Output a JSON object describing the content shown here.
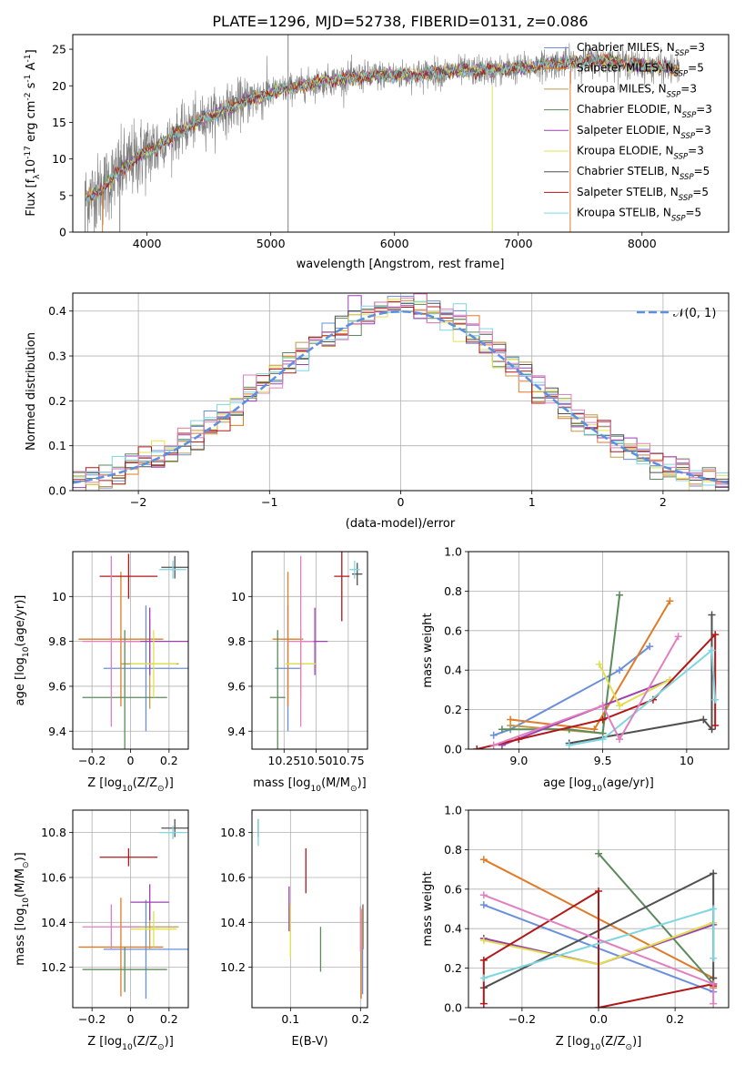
{
  "figure_title": "PLATE=1296, MJD=52738, FIBERID=0131, z=0.086",
  "colors": {
    "chabrier_miles": "#6a8fdc",
    "salpeter_miles": "#e07b27",
    "kroupa_miles": "#c09a4a",
    "chabrier_elodie": "#5b8a5b",
    "salpeter_elodie": "#9b40b0",
    "kroupa_elodie": "#e0e050",
    "chabrier_stelib": "#505050",
    "salpeter_stelib": "#b01818",
    "kroupa_stelib": "#7dd6e0",
    "pink": "#e080c0",
    "normal": "#5b8fe0",
    "spectrum": "#808080"
  },
  "chart_data": [
    {
      "type": "line",
      "id": "spectrum",
      "title": "PLATE=1296, MJD=52738, FIBERID=0131, z=0.086",
      "xlabel": "wavelength [Angstrom, rest frame]",
      "ylabel_parts": [
        "Flux [f",
        "λ",
        "10",
        "-17",
        " erg cm",
        "-2",
        " s",
        "-1",
        " A",
        "-1",
        "]"
      ],
      "xlim": [
        3400,
        8700
      ],
      "ylim": [
        0,
        27
      ],
      "xticks": [
        4000,
        5000,
        6000,
        7000,
        8000
      ],
      "yticks": [
        0,
        5,
        10,
        15,
        20,
        25
      ],
      "legend_placement": "upper-right",
      "legend": [
        {
          "label": "Chabrier MILES, N",
          "sub": "SSP",
          "tail": "=3",
          "color": "#6a8fdc"
        },
        {
          "label": "Salpeter MILES, N",
          "sub": "SSP",
          "tail": "=5",
          "color": "#e07b27"
        },
        {
          "label": "Kroupa MILES, N",
          "sub": "SSP",
          "tail": "=3",
          "color": "#c09a4a"
        },
        {
          "label": "Chabrier ELODIE, N",
          "sub": "SSP",
          "tail": "=3",
          "color": "#5b8a5b"
        },
        {
          "label": "Salpeter ELODIE, N",
          "sub": "SSP",
          "tail": "=3",
          "color": "#9b40b0"
        },
        {
          "label": "Kroupa ELODIE, N",
          "sub": "SSP",
          "tail": "=3",
          "color": "#e0e050"
        },
        {
          "label": "Chabrier STELIB, N",
          "sub": "SSP",
          "tail": "=5",
          "color": "#505050"
        },
        {
          "label": "Salpeter STELIB, N",
          "sub": "SSP",
          "tail": "=5",
          "color": "#b01818"
        },
        {
          "label": "Kroupa STELIB, N",
          "sub": "SSP",
          "tail": "=5",
          "color": "#7dd6e0"
        }
      ],
      "continuum": {
        "x": [
          3500,
          3600,
          3700,
          3800,
          3900,
          4000,
          4100,
          4200,
          4300,
          4400,
          4500,
          4600,
          4700,
          4800,
          4900,
          5000,
          5100,
          5200,
          5300,
          5400,
          5500,
          5600,
          5700,
          5800,
          5900,
          6000,
          6100,
          6200,
          6300,
          6400,
          6500,
          6600,
          6700,
          6800,
          6900,
          7000,
          7100,
          7200,
          7300,
          7400,
          7500,
          7600,
          7700,
          7800,
          7900,
          8000,
          8100,
          8200,
          8300
        ],
        "y": [
          4.5,
          5.5,
          7.0,
          8.5,
          10.0,
          11.0,
          11.8,
          13.0,
          14.0,
          15.0,
          15.8,
          16.5,
          17.2,
          18.0,
          18.5,
          19.0,
          19.5,
          19.8,
          20.2,
          20.5,
          20.8,
          21.0,
          21.2,
          21.3,
          21.5,
          21.4,
          21.5,
          21.6,
          21.8,
          21.8,
          22.0,
          22.0,
          22.1,
          22.0,
          22.3,
          22.4,
          22.6,
          22.8,
          23.0,
          23.2,
          23.3,
          23.5,
          23.4,
          23.2,
          23.0,
          22.8,
          22.6,
          22.4,
          22.2
        ]
      },
      "spikes": [
        {
          "x": 5140,
          "y": [
            0,
            27
          ],
          "color": "#808080"
        },
        {
          "x": 6790,
          "y": [
            0,
            20
          ],
          "color": "#e0e050"
        },
        {
          "x": 7420,
          "y": [
            0,
            22
          ],
          "color": "#e07b27"
        },
        {
          "x": 3500,
          "y": [
            0,
            7
          ],
          "color": "#808080"
        },
        {
          "x": 3640,
          "y": [
            0,
            6
          ],
          "color": "#e07b27"
        },
        {
          "x": 3780,
          "y": [
            0,
            9
          ],
          "color": "#808080"
        }
      ]
    },
    {
      "type": "step",
      "id": "residuals",
      "xlabel": "(data-model)/error",
      "ylabel": "Normed distribution",
      "xlim": [
        -2.5,
        2.5
      ],
      "ylim": [
        0,
        0.44
      ],
      "xticks": [
        -2,
        -1,
        0,
        1,
        2
      ],
      "yticks": [
        0,
        0.1,
        0.2,
        0.3,
        0.4
      ],
      "legend_placement": "upper-right",
      "legend_label": "𝒩(0, 1)",
      "bin_width": 0.1,
      "normal_pdf": true
    },
    {
      "type": "errorbar",
      "id": "age-vs-z",
      "xlabel": "Z [log10(Z/Z⊙)]",
      "ylabel": "age  [log10(age/yr)]",
      "xlim": [
        -0.3,
        0.3
      ],
      "ylim": [
        9.32,
        10.2
      ],
      "xticks": [
        -0.2,
        0.0,
        0.2
      ],
      "yticks": [
        9.4,
        9.6,
        9.8,
        10.0
      ],
      "points": [
        {
          "x": 0.08,
          "y": 9.68,
          "xerr": 0.22,
          "yerr": 0.28,
          "color": "#6a8fdc"
        },
        {
          "x": -0.05,
          "y": 9.81,
          "xerr": 0.22,
          "yerr": 0.3,
          "color": "#e07b27"
        },
        {
          "x": 0.1,
          "y": 9.7,
          "xerr": 0.15,
          "yerr": 0.2,
          "color": "#c09a4a"
        },
        {
          "x": -0.03,
          "y": 9.55,
          "xerr": 0.22,
          "yerr": 0.3,
          "color": "#5b8a5b"
        },
        {
          "x": 0.1,
          "y": 9.8,
          "xerr": 0.2,
          "yerr": 0.15,
          "color": "#9b40b0"
        },
        {
          "x": 0.12,
          "y": 9.7,
          "xerr": 0.12,
          "yerr": 0.15,
          "color": "#e0e050"
        },
        {
          "x": 0.23,
          "y": 10.13,
          "xerr": 0.07,
          "yerr": 0.05,
          "color": "#505050"
        },
        {
          "x": -0.01,
          "y": 10.09,
          "xerr": 0.15,
          "yerr": 0.1,
          "color": "#b01818"
        },
        {
          "x": 0.22,
          "y": 10.12,
          "xerr": 0.07,
          "yerr": 0.04,
          "color": "#7dd6e0"
        },
        {
          "x": -0.1,
          "y": 9.8,
          "xerr": 0.15,
          "yerr": 0.38,
          "color": "#e080c0"
        }
      ]
    },
    {
      "type": "errorbar",
      "id": "age-vs-mass",
      "xlabel": "mass [log10(M/M⊙)]",
      "ylabel": "",
      "xlim": [
        10.0,
        10.9
      ],
      "ylim": [
        9.32,
        10.2
      ],
      "xticks": [
        10.25,
        10.5,
        10.75
      ],
      "xticklabels": [
        "10.25",
        "10.50",
        "10.75"
      ],
      "yticks": [
        9.4,
        9.6,
        9.8,
        10.0
      ],
      "points": [
        {
          "x": 10.28,
          "y": 9.68,
          "xerr": 0.1,
          "yerr": 0.28,
          "color": "#6a8fdc"
        },
        {
          "x": 10.28,
          "y": 9.81,
          "xerr": 0.12,
          "yerr": 0.3,
          "color": "#e07b27"
        },
        {
          "x": 10.38,
          "y": 9.7,
          "xerr": 0.1,
          "yerr": 0.15,
          "color": "#c09a4a"
        },
        {
          "x": 10.2,
          "y": 9.55,
          "xerr": 0.06,
          "yerr": 0.3,
          "color": "#5b8a5b"
        },
        {
          "x": 10.49,
          "y": 9.8,
          "xerr": 0.1,
          "yerr": 0.15,
          "color": "#9b40b0"
        },
        {
          "x": 10.38,
          "y": 9.7,
          "xerr": 0.12,
          "yerr": 0.15,
          "color": "#e0e050"
        },
        {
          "x": 10.82,
          "y": 10.1,
          "xerr": 0.04,
          "yerr": 0.05,
          "color": "#505050"
        },
        {
          "x": 10.7,
          "y": 10.09,
          "xerr": 0.06,
          "yerr": 0.2,
          "color": "#b01818"
        },
        {
          "x": 10.8,
          "y": 10.12,
          "xerr": 0.04,
          "yerr": 0.04,
          "color": "#7dd6e0"
        },
        {
          "x": 10.38,
          "y": 9.8,
          "xerr": 0.1,
          "yerr": 0.38,
          "color": "#e080c0"
        }
      ]
    },
    {
      "type": "line",
      "id": "weight-vs-age",
      "xlabel": "age  [log10(age/yr)]",
      "ylabel": "mass weight",
      "xlim": [
        8.7,
        10.25
      ],
      "ylim": [
        0,
        1
      ],
      "xticks": [
        9.0,
        9.5,
        10.0
      ],
      "yticks": [
        0.0,
        0.2,
        0.4,
        0.6,
        0.8,
        1.0
      ],
      "series": [
        {
          "color": "#6a8fdc",
          "x": [
            8.85,
            8.95,
            9.6,
            9.78
          ],
          "y": [
            0.07,
            0.1,
            0.4,
            0.52
          ]
        },
        {
          "color": "#e07b27",
          "x": [
            8.95,
            9.45,
            9.9
          ],
          "y": [
            0.15,
            0.1,
            0.75
          ]
        },
        {
          "color": "#c09a4a",
          "x": [
            8.95,
            9.5
          ],
          "y": [
            0.12,
            0.08
          ]
        },
        {
          "color": "#5b8a5b",
          "x": [
            8.9,
            9.3,
            9.5,
            9.6
          ],
          "y": [
            0.1,
            0.1,
            0.08,
            0.78
          ]
        },
        {
          "color": "#9b40b0",
          "x": [
            8.9,
            9.5,
            9.9
          ],
          "y": [
            0.02,
            0.22,
            0.35
          ]
        },
        {
          "color": "#e0e050",
          "x": [
            9.48,
            9.6,
            9.9
          ],
          "y": [
            0.43,
            0.22,
            0.35
          ]
        },
        {
          "color": "#505050",
          "x": [
            9.3,
            10.1,
            10.15,
            10.15
          ],
          "y": [
            0.03,
            0.15,
            0.1,
            0.68
          ]
        },
        {
          "color": "#b01818",
          "x": [
            8.75,
            9.0,
            9.5,
            9.8,
            10.17,
            10.17
          ],
          "y": [
            0.0,
            0.05,
            0.15,
            0.25,
            0.58,
            0.12
          ]
        },
        {
          "color": "#7dd6e0",
          "x": [
            9.3,
            9.5,
            10.15,
            10.17
          ],
          "y": [
            0.02,
            0.05,
            0.5,
            0.25
          ]
        },
        {
          "color": "#e080c0",
          "x": [
            8.85,
            9.5,
            9.6,
            9.95
          ],
          "y": [
            0.02,
            0.22,
            0.05,
            0.57
          ]
        }
      ]
    },
    {
      "type": "errorbar",
      "id": "mass-vs-z",
      "xlabel": "Z [log10(Z/Z⊙)]",
      "ylabel": "mass [log10(M/M⊙)]",
      "xlim": [
        -0.3,
        0.3
      ],
      "ylim": [
        10.02,
        10.9
      ],
      "xticks": [
        -0.2,
        0.0,
        0.2
      ],
      "yticks": [
        10.2,
        10.4,
        10.6,
        10.8
      ],
      "points": [
        {
          "x": 0.08,
          "y": 10.28,
          "xerr": 0.22,
          "yerr": 0.22,
          "color": "#6a8fdc"
        },
        {
          "x": -0.05,
          "y": 10.29,
          "xerr": 0.22,
          "yerr": 0.22,
          "color": "#e07b27"
        },
        {
          "x": 0.1,
          "y": 10.38,
          "xerr": 0.15,
          "yerr": 0.1,
          "color": "#c09a4a"
        },
        {
          "x": -0.03,
          "y": 10.19,
          "xerr": 0.22,
          "yerr": 0.1,
          "color": "#5b8a5b"
        },
        {
          "x": 0.1,
          "y": 10.49,
          "xerr": 0.1,
          "yerr": 0.08,
          "color": "#9b40b0"
        },
        {
          "x": 0.12,
          "y": 10.37,
          "xerr": 0.12,
          "yerr": 0.08,
          "color": "#e0e050"
        },
        {
          "x": 0.23,
          "y": 10.82,
          "xerr": 0.07,
          "yerr": 0.04,
          "color": "#505050"
        },
        {
          "x": -0.01,
          "y": 10.69,
          "xerr": 0.15,
          "yerr": 0.04,
          "color": "#b01818"
        },
        {
          "x": 0.22,
          "y": 10.8,
          "xerr": 0.07,
          "yerr": 0.03,
          "color": "#7dd6e0"
        },
        {
          "x": -0.1,
          "y": 10.38,
          "xerr": 0.15,
          "yerr": 0.1,
          "color": "#e080c0"
        }
      ]
    },
    {
      "type": "errorbar",
      "id": "mass-vs-ebv",
      "xlabel": "E(B-V)",
      "ylabel": "",
      "xlim": [
        0.045,
        0.21
      ],
      "ylim": [
        10.02,
        10.9
      ],
      "xticks": [
        0.1,
        0.2
      ],
      "yticks": [
        10.2,
        10.4,
        10.6,
        10.8
      ],
      "points": [
        {
          "x": 0.203,
          "y": 10.28,
          "xerr": 0,
          "yerr": 0.2,
          "color": "#6a8fdc"
        },
        {
          "x": 0.201,
          "y": 10.26,
          "xerr": 0,
          "yerr": 0.2,
          "color": "#e07b27"
        },
        {
          "x": 0.204,
          "y": 10.38,
          "xerr": 0,
          "yerr": 0.1,
          "color": "#c09a4a"
        },
        {
          "x": 0.143,
          "y": 10.28,
          "xerr": 0,
          "yerr": 0.1,
          "color": "#5b8a5b"
        },
        {
          "x": 0.098,
          "y": 10.46,
          "xerr": 0,
          "yerr": 0.1,
          "color": "#9b40b0"
        },
        {
          "x": 0.1,
          "y": 10.36,
          "xerr": 0,
          "yerr": 0.12,
          "color": "#e0e050"
        },
        {
          "x": 0.054,
          "y": 10.82,
          "xerr": 0,
          "yerr": 0.04,
          "color": "#505050"
        },
        {
          "x": 0.122,
          "y": 10.63,
          "xerr": 0,
          "yerr": 0.1,
          "color": "#b01818"
        },
        {
          "x": 0.054,
          "y": 10.8,
          "xerr": 0,
          "yerr": 0.06,
          "color": "#7dd6e0"
        },
        {
          "x": 0.2,
          "y": 10.37,
          "xerr": 0,
          "yerr": 0.1,
          "color": "#e080c0"
        }
      ]
    },
    {
      "type": "line",
      "id": "weight-vs-z",
      "xlabel": "Z [log10(Z/Z⊙)]",
      "ylabel": "mass weight",
      "xlim": [
        -0.34,
        0.34
      ],
      "ylim": [
        0,
        1
      ],
      "xticks": [
        -0.2,
        0.0,
        0.2
      ],
      "yticks": [
        0.0,
        0.2,
        0.4,
        0.6,
        0.8,
        1.0
      ],
      "series": [
        {
          "color": "#6a8fdc",
          "x": [
            -0.3,
            0.3
          ],
          "y": [
            0.52,
            0.08
          ]
        },
        {
          "color": "#e07b27",
          "x": [
            -0.3,
            0.3,
            0.3
          ],
          "y": [
            0.75,
            0.15,
            0.1
          ]
        },
        {
          "color": "#c09a4a",
          "x": [
            -0.3,
            0.0,
            0.3
          ],
          "y": [
            0.35,
            0.22,
            0.43
          ]
        },
        {
          "color": "#5b8a5b",
          "x": [
            0.0,
            0.3
          ],
          "y": [
            0.78,
            0.12
          ]
        },
        {
          "color": "#9b40b0",
          "x": [
            -0.3,
            0.0,
            0.3
          ],
          "y": [
            0.35,
            0.22,
            0.42
          ]
        },
        {
          "color": "#e0e050",
          "x": [
            -0.3,
            0.0,
            0.3
          ],
          "y": [
            0.34,
            0.22,
            0.43
          ]
        },
        {
          "color": "#505050",
          "x": [
            -0.3,
            0.3,
            0.3,
            0.3
          ],
          "y": [
            0.1,
            0.68,
            0.15,
            0.12
          ]
        },
        {
          "color": "#b01818",
          "x": [
            -0.3,
            -0.3,
            0.0,
            0.0,
            0.3,
            0.3
          ],
          "y": [
            0.02,
            0.24,
            0.59,
            0.0,
            0.12,
            0.11
          ]
        },
        {
          "color": "#7dd6e0",
          "x": [
            -0.3,
            0.3,
            0.3
          ],
          "y": [
            0.15,
            0.5,
            0.25
          ]
        },
        {
          "color": "#e080c0",
          "x": [
            -0.3,
            0.3,
            0.3
          ],
          "y": [
            0.57,
            0.12,
            0.02
          ]
        }
      ]
    }
  ]
}
